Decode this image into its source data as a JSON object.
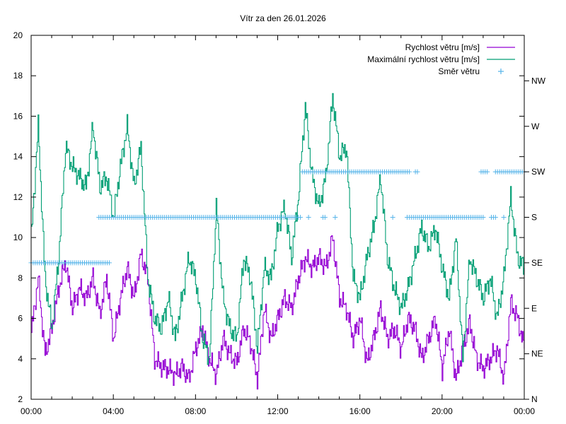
{
  "chart_data": {
    "type": "line",
    "title": "Vítr za den 26.01.2026",
    "xlabel": "",
    "ylabel": "",
    "xlim": [
      0,
      24
    ],
    "ylim": [
      2,
      20
    ],
    "y2lim": [
      0,
      360
    ],
    "x_tick_labels": [
      "00:00",
      "04:00",
      "08:00",
      "12:00",
      "16:00",
      "20:00",
      "00:00"
    ],
    "x_tick_values": [
      0,
      4,
      8,
      12,
      16,
      20,
      24
    ],
    "y_tick_labels": [
      "2",
      "4",
      "6",
      "8",
      "10",
      "12",
      "14",
      "16",
      "18",
      "20"
    ],
    "y_tick_values": [
      2,
      4,
      6,
      8,
      10,
      12,
      14,
      16,
      18,
      20
    ],
    "y2_tick_labels": [
      "N",
      "NE",
      "E",
      "SE",
      "S",
      "SW",
      "W",
      "NW"
    ],
    "y2_tick_values": [
      0,
      45,
      90,
      135,
      180,
      225,
      270,
      315
    ],
    "grid": false,
    "legend_position": "top-right",
    "x_step_hours": 0.3333,
    "series": [
      {
        "name": "Rychlost větru [m/s]",
        "color": "#9400d3",
        "style": "line",
        "values": [
          5.3,
          8.0,
          4.2,
          5.5,
          7.5,
          8.8,
          6.5,
          7.5,
          7.0,
          8.0,
          6.2,
          8.0,
          5.0,
          7.0,
          8.5,
          7.0,
          9.2,
          8.0,
          4.0,
          3.6,
          3.5,
          3.2,
          3.6,
          3.0,
          4.5,
          5.5,
          4.0,
          3.2,
          5.0,
          4.2,
          3.8,
          5.5,
          4.8,
          3.0,
          6.5,
          5.0,
          6.0,
          7.0,
          6.5,
          8.0,
          9.0,
          8.5,
          9.0,
          8.5,
          10.0,
          7.0,
          6.5,
          5.0,
          6.0,
          3.8,
          5.0,
          6.5,
          5.0,
          5.5,
          4.5,
          6.0,
          5.5,
          4.0,
          5.0,
          6.0,
          3.5,
          5.5,
          3.0,
          4.5,
          5.8,
          4.0,
          3.5,
          4.0,
          4.5,
          3.0,
          6.8,
          6.0,
          4.5
        ]
      },
      {
        "name": "Maximální rychlost větru [m/s]",
        "color": "#009e73",
        "style": "line",
        "values": [
          10.0,
          15.5,
          8.0,
          5.5,
          9.0,
          14.5,
          13.5,
          13.0,
          12.5,
          15.5,
          12.5,
          13.0,
          11.0,
          13.5,
          15.5,
          12.5,
          14.5,
          8.0,
          6.0,
          5.5,
          7.0,
          5.0,
          7.0,
          9.0,
          8.0,
          5.0,
          4.0,
          11.5,
          7.0,
          5.5,
          5.0,
          9.0,
          8.0,
          4.5,
          8.5,
          8.0,
          10.5,
          11.5,
          9.0,
          12.0,
          16.5,
          13.0,
          11.5,
          13.0,
          17.0,
          14.0,
          14.5,
          8.0,
          7.0,
          9.0,
          10.5,
          13.0,
          9.0,
          7.5,
          6.5,
          7.5,
          9.0,
          10.5,
          9.5,
          10.5,
          8.5,
          7.0,
          10.0,
          4.0,
          9.0,
          8.0,
          7.0,
          8.0,
          6.0,
          8.0,
          12.0,
          9.0,
          8.5
        ]
      },
      {
        "name": "Směr větru",
        "color": "#56b4e9",
        "style": "points",
        "axis": "y2",
        "segments": [
          {
            "direction": 135,
            "from": 0.0,
            "to": 3.8,
            "step": 0.1
          },
          {
            "direction": 180,
            "from": 3.3,
            "to": 13.1,
            "step": 0.1
          },
          {
            "direction": 180,
            "from": 13.5,
            "to": 13.5,
            "step": 0.1
          },
          {
            "direction": 180,
            "from": 14.2,
            "to": 14.3,
            "step": 0.1
          },
          {
            "direction": 180,
            "from": 14.8,
            "to": 14.8,
            "step": 0.1
          },
          {
            "direction": 225,
            "from": 13.2,
            "to": 18.4,
            "step": 0.1
          },
          {
            "direction": 225,
            "from": 18.7,
            "to": 18.8,
            "step": 0.1
          },
          {
            "direction": 180,
            "from": 17.6,
            "to": 17.6,
            "step": 0.1
          },
          {
            "direction": 180,
            "from": 18.3,
            "to": 22.0,
            "step": 0.1
          },
          {
            "direction": 180,
            "from": 22.4,
            "to": 22.6,
            "step": 0.1
          },
          {
            "direction": 180,
            "from": 23.0,
            "to": 23.0,
            "step": 0.1
          },
          {
            "direction": 225,
            "from": 21.9,
            "to": 22.2,
            "step": 0.1
          },
          {
            "direction": 225,
            "from": 22.6,
            "to": 24.0,
            "step": 0.1
          }
        ]
      }
    ]
  }
}
